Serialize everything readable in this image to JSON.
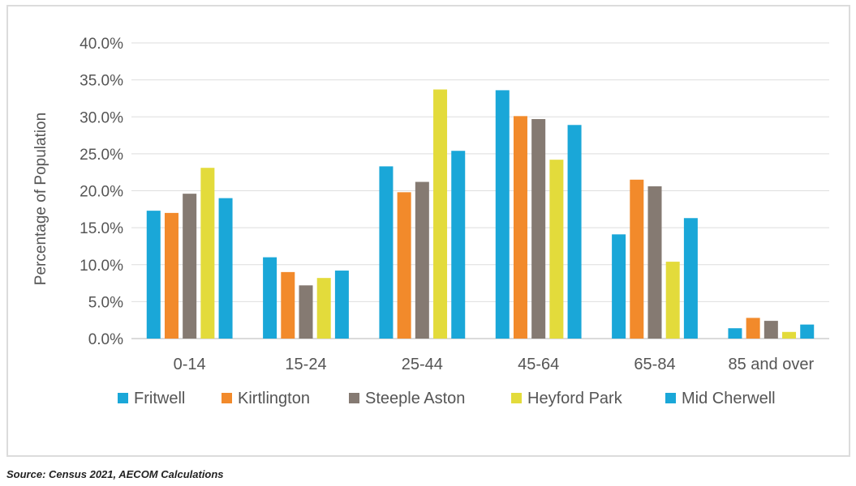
{
  "chart_data": {
    "type": "bar",
    "ylabel": "Percentage of Population",
    "xlabel": "",
    "ylim": [
      0,
      40
    ],
    "ytick_step": 5,
    "ytick_format": "percent_1dp",
    "grid": true,
    "legend_position": "bottom",
    "categories": [
      "0-14",
      "15-24",
      "25-44",
      "45-64",
      "65-84",
      "85 and over"
    ],
    "series": [
      {
        "name": "Fritwell",
        "color": "#1aa7d8",
        "values": [
          17.3,
          11.0,
          23.3,
          33.6,
          14.1,
          1.4
        ]
      },
      {
        "name": "Kirtlington",
        "color": "#f28a2b",
        "values": [
          17.0,
          9.0,
          19.8,
          30.1,
          21.5,
          2.8
        ]
      },
      {
        "name": "Steeple Aston",
        "color": "#857a72",
        "values": [
          19.6,
          7.2,
          21.2,
          29.7,
          20.6,
          2.4
        ]
      },
      {
        "name": "Heyford Park",
        "color": "#e3db3b",
        "values": [
          23.1,
          8.2,
          33.7,
          24.2,
          10.4,
          0.9
        ]
      },
      {
        "name": "Mid Cherwell",
        "color": "#1aa7d8",
        "values": [
          19.0,
          9.2,
          25.4,
          28.9,
          16.3,
          1.9
        ]
      }
    ]
  },
  "source_note": "Source: Census 2021, AECOM Calculations"
}
